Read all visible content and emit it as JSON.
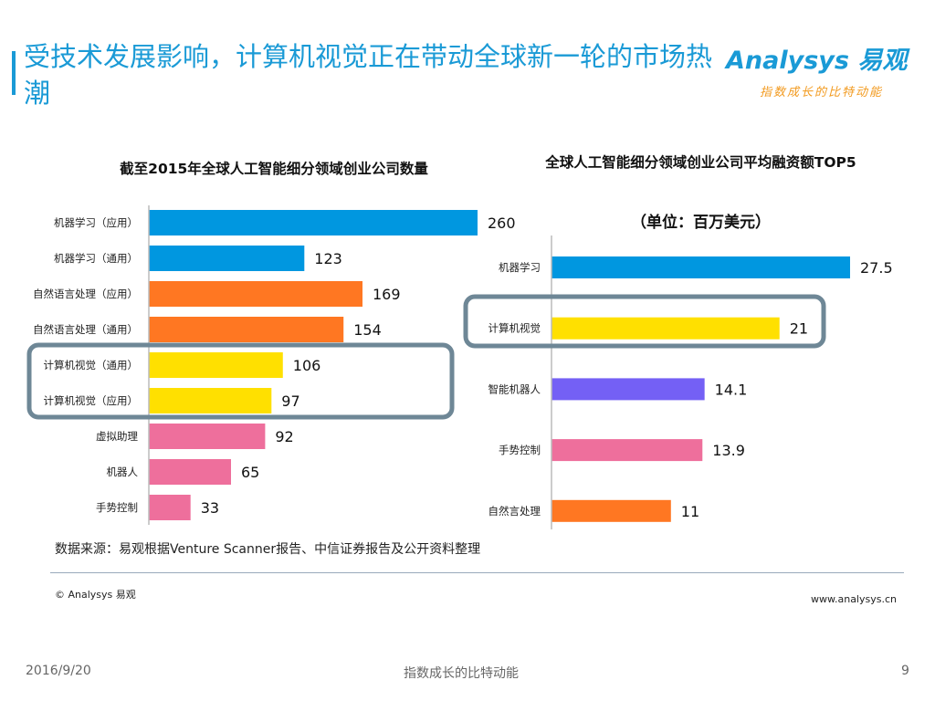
{
  "header": {
    "title": "受技术发展影响，计算机视觉正在带动全球新一轮的市场热潮",
    "logo": "Analysys 易观",
    "slogan": "指数成长的比特动能"
  },
  "chart_data": [
    {
      "type": "bar",
      "orientation": "horizontal",
      "title": "截至2015年全球人工智能细分领域创业公司数量",
      "categories": [
        "机器学习（应用）",
        "机器学习（通用）",
        "自然语言处理（应用）",
        "自然语言处理（通用）",
        "计算机视觉（通用）",
        "计算机视觉（应用）",
        "虚拟助理",
        "机器人",
        "手势控制"
      ],
      "values": [
        260,
        123,
        169,
        154,
        106,
        97,
        92,
        65,
        33
      ],
      "colors": [
        "#0097e0",
        "#0097e0",
        "#ff7722",
        "#ff7722",
        "#ffe000",
        "#ffe000",
        "#ee6f9c",
        "#ee6f9c",
        "#ee6f9c"
      ],
      "highlight": [
        "计算机视觉（通用）",
        "计算机视觉（应用）"
      ],
      "xlim": [
        0,
        260
      ]
    },
    {
      "type": "bar",
      "orientation": "horizontal",
      "title": "全球人工智能细分领域创业公司平均融资额TOP5",
      "subtitle": "（单位：百万美元）",
      "categories": [
        "机器学习",
        "计算机视觉",
        "智能机器人",
        "手势控制",
        "自然言处理"
      ],
      "values": [
        27.5,
        21,
        14.1,
        13.9,
        11
      ],
      "colors": [
        "#0097e0",
        "#ffe000",
        "#7460f5",
        "#ee6f9c",
        "#ff7722"
      ],
      "highlight": [
        "计算机视觉"
      ],
      "xlim": [
        0,
        27.5
      ]
    }
  ],
  "footer": {
    "source": "数据来源：易观根据Venture Scanner报告、中信证券报告及公开资料整理",
    "copyright": "© Analysys 易观",
    "url": "www.analysys.cn",
    "date": "2016/9/20",
    "center": "指数成长的比特动能",
    "page": "9"
  },
  "colors": {
    "accent": "#1a9ad6",
    "highlight_box": "#6e8796"
  }
}
